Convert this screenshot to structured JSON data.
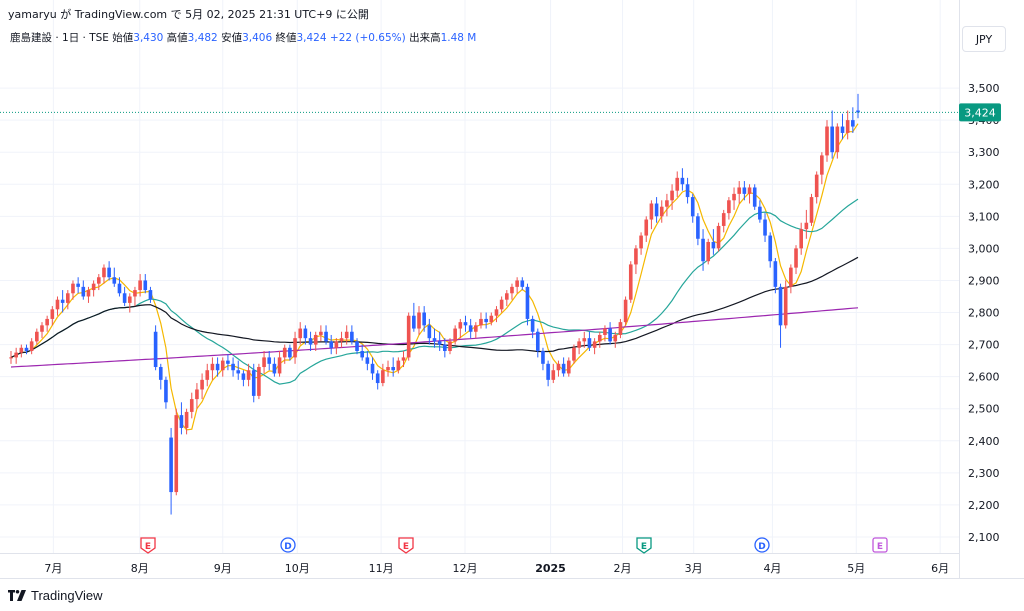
{
  "header": {
    "publisher": "yamaryu が TradingView.com で 5月 02, 2025 21:31 UTC+9 に公開",
    "symbol": "鹿島建設 · 1日 · TSE",
    "open_label": "始値",
    "open": "3,430",
    "high_label": "高値",
    "high": "3,482",
    "low_label": "安値",
    "low": "3,406",
    "close_label": "終値",
    "close": "3,424",
    "change": "+22 (+0.65%)",
    "volume_label": "出来高",
    "volume": "1.48 M"
  },
  "currency_button": "JPY",
  "brand": {
    "name": "TradingView",
    "icon": "tradingview-logo-icon"
  },
  "colors": {
    "up": "#ef5350",
    "down": "#2962ff",
    "ma_fast": "#f5b800",
    "ma_mid": "#26a69a",
    "ma_slow": "#131722",
    "ma_long": "#9c27b0",
    "last_price_bg": "#089981"
  },
  "chart_data": {
    "type": "candlestick",
    "y_axis": {
      "range": [
        2050,
        3600
      ],
      "ticks": [
        "3,500",
        "3,400",
        "3,300",
        "3,200",
        "3,100",
        "3,000",
        "2,900",
        "2,800",
        "2,700",
        "2,600",
        "2,500",
        "2,400",
        "2,300",
        "2,200",
        "2,100"
      ]
    },
    "x_axis": {
      "ticks": [
        "7月",
        "8月",
        "9月",
        "10月",
        "11月",
        "12月",
        "2025",
        "2月",
        "3月",
        "4月",
        "5月",
        "6月"
      ]
    },
    "last_price": "3,424",
    "grid": true,
    "candles": [
      [
        2660,
        2680,
        2640,
        2660
      ],
      [
        2660,
        2690,
        2640,
        2675
      ],
      [
        2675,
        2700,
        2660,
        2690
      ],
      [
        2690,
        2700,
        2670,
        2680
      ],
      [
        2680,
        2720,
        2670,
        2710
      ],
      [
        2710,
        2750,
        2700,
        2740
      ],
      [
        2740,
        2770,
        2720,
        2760
      ],
      [
        2760,
        2790,
        2740,
        2780
      ],
      [
        2780,
        2820,
        2760,
        2810
      ],
      [
        2810,
        2850,
        2790,
        2840
      ],
      [
        2840,
        2870,
        2800,
        2830
      ],
      [
        2830,
        2870,
        2810,
        2860
      ],
      [
        2860,
        2900,
        2840,
        2890
      ],
      [
        2890,
        2910,
        2860,
        2880
      ],
      [
        2880,
        2900,
        2840,
        2850
      ],
      [
        2850,
        2880,
        2830,
        2870
      ],
      [
        2870,
        2900,
        2850,
        2890
      ],
      [
        2890,
        2920,
        2870,
        2910
      ],
      [
        2910,
        2950,
        2890,
        2940
      ],
      [
        2940,
        2960,
        2900,
        2910
      ],
      [
        2910,
        2940,
        2880,
        2890
      ],
      [
        2890,
        2910,
        2850,
        2860
      ],
      [
        2860,
        2880,
        2820,
        2830
      ],
      [
        2830,
        2860,
        2800,
        2850
      ],
      [
        2850,
        2880,
        2820,
        2870
      ],
      [
        2870,
        2920,
        2850,
        2900
      ],
      [
        2900,
        2920,
        2860,
        2870
      ],
      [
        2870,
        2880,
        2830,
        2840
      ],
      [
        2740,
        2760,
        2620,
        2630
      ],
      [
        2630,
        2640,
        2560,
        2590
      ],
      [
        2590,
        2600,
        2500,
        2520
      ],
      [
        2410,
        2440,
        2170,
        2240
      ],
      [
        2240,
        2500,
        2230,
        2480
      ],
      [
        2480,
        2520,
        2420,
        2440
      ],
      [
        2440,
        2500,
        2420,
        2490
      ],
      [
        2490,
        2550,
        2470,
        2530
      ],
      [
        2530,
        2580,
        2500,
        2560
      ],
      [
        2560,
        2610,
        2530,
        2590
      ],
      [
        2590,
        2640,
        2570,
        2620
      ],
      [
        2620,
        2660,
        2590,
        2640
      ],
      [
        2640,
        2660,
        2600,
        2620
      ],
      [
        2620,
        2660,
        2600,
        2650
      ],
      [
        2650,
        2670,
        2620,
        2640
      ],
      [
        2640,
        2660,
        2600,
        2620
      ],
      [
        2620,
        2650,
        2590,
        2610
      ],
      [
        2610,
        2620,
        2570,
        2590
      ],
      [
        2590,
        2640,
        2570,
        2620
      ],
      [
        2620,
        2640,
        2520,
        2540
      ],
      [
        2540,
        2640,
        2530,
        2630
      ],
      [
        2630,
        2680,
        2610,
        2660
      ],
      [
        2660,
        2680,
        2620,
        2640
      ],
      [
        2640,
        2660,
        2600,
        2610
      ],
      [
        2610,
        2680,
        2600,
        2660
      ],
      [
        2660,
        2700,
        2640,
        2690
      ],
      [
        2690,
        2700,
        2650,
        2660
      ],
      [
        2660,
        2740,
        2640,
        2720
      ],
      [
        2720,
        2770,
        2700,
        2750
      ],
      [
        2750,
        2760,
        2700,
        2720
      ],
      [
        2720,
        2740,
        2680,
        2700
      ],
      [
        2700,
        2740,
        2680,
        2730
      ],
      [
        2730,
        2760,
        2710,
        2740
      ],
      [
        2740,
        2760,
        2700,
        2710
      ],
      [
        2710,
        2730,
        2670,
        2690
      ],
      [
        2690,
        2720,
        2670,
        2710
      ],
      [
        2710,
        2740,
        2690,
        2720
      ],
      [
        2720,
        2760,
        2700,
        2740
      ],
      [
        2740,
        2760,
        2700,
        2710
      ],
      [
        2710,
        2720,
        2670,
        2680
      ],
      [
        2680,
        2700,
        2650,
        2660
      ],
      [
        2660,
        2680,
        2620,
        2640
      ],
      [
        2640,
        2660,
        2590,
        2610
      ],
      [
        2610,
        2620,
        2560,
        2580
      ],
      [
        2580,
        2640,
        2570,
        2620
      ],
      [
        2620,
        2650,
        2600,
        2630
      ],
      [
        2630,
        2660,
        2600,
        2620
      ],
      [
        2620,
        2660,
        2610,
        2650
      ],
      [
        2650,
        2680,
        2630,
        2660
      ],
      [
        2660,
        2800,
        2650,
        2790
      ],
      [
        2790,
        2830,
        2740,
        2750
      ],
      [
        2750,
        2820,
        2730,
        2800
      ],
      [
        2800,
        2820,
        2740,
        2760
      ],
      [
        2760,
        2780,
        2700,
        2720
      ],
      [
        2720,
        2750,
        2690,
        2710
      ],
      [
        2710,
        2740,
        2680,
        2700
      ],
      [
        2700,
        2720,
        2660,
        2680
      ],
      [
        2680,
        2720,
        2670,
        2710
      ],
      [
        2710,
        2760,
        2700,
        2750
      ],
      [
        2750,
        2780,
        2720,
        2770
      ],
      [
        2770,
        2790,
        2740,
        2760
      ],
      [
        2760,
        2780,
        2720,
        2740
      ],
      [
        2740,
        2770,
        2720,
        2760
      ],
      [
        2760,
        2800,
        2750,
        2780
      ],
      [
        2780,
        2800,
        2750,
        2770
      ],
      [
        2770,
        2800,
        2760,
        2790
      ],
      [
        2790,
        2820,
        2770,
        2810
      ],
      [
        2810,
        2850,
        2800,
        2840
      ],
      [
        2840,
        2870,
        2820,
        2860
      ],
      [
        2860,
        2890,
        2840,
        2880
      ],
      [
        2880,
        2910,
        2860,
        2900
      ],
      [
        2900,
        2910,
        2870,
        2880
      ],
      [
        2880,
        2890,
        2760,
        2780
      ],
      [
        2780,
        2790,
        2720,
        2740
      ],
      [
        2740,
        2750,
        2660,
        2680
      ],
      [
        2680,
        2690,
        2620,
        2640
      ],
      [
        2640,
        2650,
        2570,
        2590
      ],
      [
        2590,
        2640,
        2580,
        2620
      ],
      [
        2620,
        2650,
        2600,
        2640
      ],
      [
        2640,
        2660,
        2600,
        2610
      ],
      [
        2610,
        2660,
        2600,
        2650
      ],
      [
        2650,
        2700,
        2640,
        2690
      ],
      [
        2690,
        2720,
        2670,
        2710
      ],
      [
        2710,
        2740,
        2690,
        2720
      ],
      [
        2720,
        2740,
        2680,
        2690
      ],
      [
        2690,
        2720,
        2670,
        2710
      ],
      [
        2710,
        2740,
        2690,
        2730
      ],
      [
        2730,
        2760,
        2710,
        2750
      ],
      [
        2750,
        2770,
        2700,
        2710
      ],
      [
        2710,
        2740,
        2690,
        2730
      ],
      [
        2730,
        2780,
        2720,
        2770
      ],
      [
        2770,
        2850,
        2760,
        2840
      ],
      [
        2840,
        2960,
        2830,
        2950
      ],
      [
        2950,
        3010,
        2920,
        3000
      ],
      [
        3000,
        3050,
        2980,
        3040
      ],
      [
        3040,
        3100,
        3020,
        3090
      ],
      [
        3090,
        3150,
        3060,
        3140
      ],
      [
        3140,
        3160,
        3080,
        3100
      ],
      [
        3100,
        3150,
        3080,
        3130
      ],
      [
        3130,
        3170,
        3100,
        3150
      ],
      [
        3150,
        3200,
        3120,
        3180
      ],
      [
        3180,
        3240,
        3160,
        3220
      ],
      [
        3220,
        3250,
        3180,
        3200
      ],
      [
        3200,
        3220,
        3140,
        3160
      ],
      [
        3160,
        3170,
        3080,
        3100
      ],
      [
        3100,
        3110,
        3010,
        3030
      ],
      [
        3030,
        3060,
        2930,
        2960
      ],
      [
        2960,
        3030,
        2950,
        3020
      ],
      [
        3020,
        3060,
        2980,
        3000
      ],
      [
        3000,
        3080,
        2990,
        3070
      ],
      [
        3070,
        3120,
        3050,
        3110
      ],
      [
        3110,
        3160,
        3090,
        3150
      ],
      [
        3150,
        3190,
        3120,
        3170
      ],
      [
        3170,
        3210,
        3140,
        3190
      ],
      [
        3190,
        3210,
        3150,
        3170
      ],
      [
        3170,
        3200,
        3140,
        3190
      ],
      [
        3190,
        3200,
        3120,
        3130
      ],
      [
        3130,
        3150,
        3080,
        3090
      ],
      [
        3090,
        3110,
        3020,
        3040
      ],
      [
        3040,
        3050,
        2940,
        2960
      ],
      [
        2960,
        2970,
        2860,
        2880
      ],
      [
        2880,
        2890,
        2690,
        2760
      ],
      [
        2760,
        2900,
        2750,
        2880
      ],
      [
        2880,
        2950,
        2860,
        2940
      ],
      [
        2940,
        3010,
        2920,
        3000
      ],
      [
        3000,
        3080,
        2980,
        3060
      ],
      [
        3060,
        3120,
        3030,
        3080
      ],
      [
        3080,
        3170,
        3070,
        3160
      ],
      [
        3160,
        3240,
        3140,
        3230
      ],
      [
        3230,
        3300,
        3200,
        3290
      ],
      [
        3290,
        3400,
        3270,
        3380
      ],
      [
        3380,
        3430,
        3280,
        3300
      ],
      [
        3300,
        3390,
        3280,
        3380
      ],
      [
        3380,
        3420,
        3340,
        3360
      ],
      [
        3360,
        3430,
        3340,
        3400
      ],
      [
        3400,
        3440,
        3360,
        3380
      ],
      [
        3430,
        3482,
        3406,
        3424
      ]
    ]
  }
}
